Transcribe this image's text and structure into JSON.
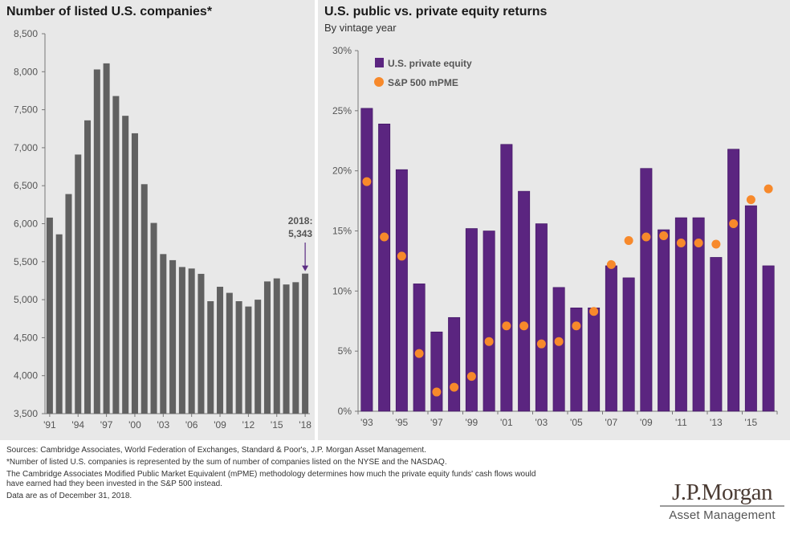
{
  "chart_data": [
    {
      "type": "bar",
      "title": "Number of listed U.S. companies*",
      "xlabel": "",
      "ylabel": "",
      "ylim": [
        3500,
        8500
      ],
      "yticks": [
        "3,500",
        "4,000",
        "4,500",
        "5,000",
        "5,500",
        "6,000",
        "6,500",
        "7,000",
        "7,500",
        "8,000",
        "8,500"
      ],
      "ytick_values": [
        3500,
        4000,
        4500,
        5000,
        5500,
        6000,
        6500,
        7000,
        7500,
        8000,
        8500
      ],
      "categories": [
        "1991",
        "1992",
        "1993",
        "1994",
        "1995",
        "1996",
        "1997",
        "1998",
        "1999",
        "2000",
        "2001",
        "2002",
        "2003",
        "2004",
        "2005",
        "2006",
        "2007",
        "2008",
        "2009",
        "2010",
        "2011",
        "2012",
        "2013",
        "2014",
        "2015",
        "2016",
        "2017",
        "2018"
      ],
      "xtick_labels": [
        "'91",
        "'94",
        "'97",
        "'00",
        "'03",
        "'06",
        "'09",
        "'12",
        "'15",
        "'18"
      ],
      "values": [
        6080,
        5860,
        6390,
        6910,
        7360,
        8030,
        8110,
        7680,
        7420,
        7190,
        6520,
        6010,
        5600,
        5520,
        5430,
        5410,
        5340,
        4980,
        5170,
        5090,
        4980,
        4910,
        5000,
        5240,
        5280,
        5200,
        5230,
        5343
      ],
      "bar_color": "#616161",
      "annotation": {
        "label_line1": "2018:",
        "label_line2": "5,343",
        "color": "#5b2c83"
      },
      "grid": false
    },
    {
      "type": "bar",
      "title": "U.S. public vs. private equity returns",
      "subtitle": "By vintage year",
      "xlabel": "",
      "ylabel": "",
      "ylim": [
        0,
        30
      ],
      "yticks": [
        "0%",
        "5%",
        "10%",
        "15%",
        "20%",
        "25%",
        "30%"
      ],
      "ytick_values": [
        0,
        5,
        10,
        15,
        20,
        25,
        30
      ],
      "categories": [
        "1993",
        "1994",
        "1995",
        "1996",
        "1997",
        "1998",
        "1999",
        "2000",
        "2001",
        "2002",
        "2003",
        "2004",
        "2005",
        "2006",
        "2007",
        "2008",
        "2009",
        "2010",
        "2011",
        "2012",
        "2013",
        "2014",
        "2015",
        "2016"
      ],
      "xtick_labels": [
        "'93",
        "'95",
        "'97",
        "'99",
        "'01",
        "'03",
        "'05",
        "'07",
        "'09",
        "'11",
        "'13",
        "'15"
      ],
      "series": [
        {
          "name": "U.S. private equity",
          "kind": "bar",
          "color": "#5b2580",
          "values": [
            25.2,
            23.9,
            20.1,
            10.6,
            6.6,
            7.8,
            15.2,
            15.0,
            22.2,
            18.3,
            15.6,
            10.3,
            8.6,
            8.6,
            12.1,
            11.1,
            20.2,
            15.1,
            16.1,
            16.1,
            12.8,
            21.8,
            17.1,
            12.1
          ]
        },
        {
          "name": "S&P 500 mPME",
          "kind": "scatter",
          "color": "#f7892b",
          "values": [
            19.1,
            14.5,
            12.9,
            4.8,
            1.6,
            2.0,
            2.9,
            5.8,
            7.1,
            7.1,
            5.6,
            5.8,
            7.1,
            8.3,
            12.2,
            14.2,
            14.5,
            14.6,
            14.0,
            14.0,
            13.9,
            15.6,
            17.6,
            18.5
          ]
        }
      ],
      "legend": {
        "placement": "top-left",
        "items": [
          "U.S. private equity",
          "S&P 500 mPME"
        ]
      },
      "grid": false
    }
  ],
  "footer": {
    "sources": "Sources: Cambridge Associates, World Federation of Exchanges, Standard & Poor's, J.P. Morgan Asset Management.",
    "note1": "*Number of listed U.S. companies is represented by the sum of number of companies listed on the NYSE and the NASDAQ.",
    "note2a": "The Cambridge Associates Modified Public Market Equivalent (mPME) methodology determines how much the private equity funds' cash flows would",
    "note2b": "have earned had they been invested in the S&P 500 instead.",
    "asof": "Data are as of December 31, 2018."
  },
  "logo": {
    "main": "J.P.Morgan",
    "sub": "Asset Management"
  }
}
